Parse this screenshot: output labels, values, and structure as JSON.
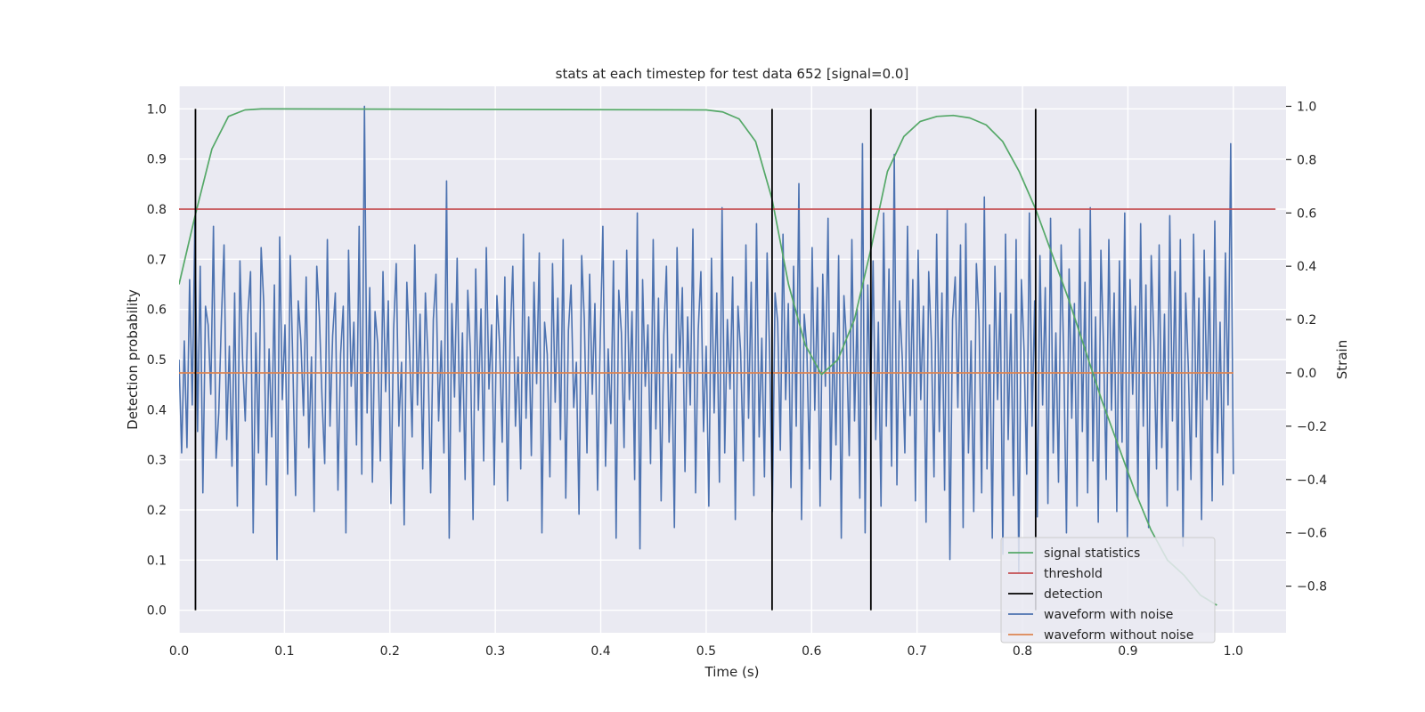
{
  "chart_data": {
    "type": "line",
    "title": "stats at each timestep for test data 652 [signal=0.0]",
    "xlabel": "Time (s)",
    "ylabel": "Detection probability",
    "ylabel_right": "Strain",
    "xlim": [
      0.0,
      1.05
    ],
    "ylim": [
      -0.045,
      1.045
    ],
    "ylim_right": [
      -0.975,
      1.075
    ],
    "grid": true,
    "legend_position": "lower-right",
    "x_ticks": [
      "0.0",
      "0.1",
      "0.2",
      "0.3",
      "0.4",
      "0.5",
      "0.6",
      "0.7",
      "0.8",
      "0.9",
      "1.0"
    ],
    "y_ticks": [
      "0.0",
      "0.1",
      "0.2",
      "0.3",
      "0.4",
      "0.5",
      "0.6",
      "0.7",
      "0.8",
      "0.9",
      "1.0"
    ],
    "y_ticks_right": [
      "−0.8",
      "−0.6",
      "−0.4",
      "−0.2",
      "0.0",
      "0.2",
      "0.4",
      "0.6",
      "0.8",
      "1.0"
    ],
    "series": [
      {
        "name": "signal statistics",
        "color": "#55a868",
        "axis": "left",
        "x": [
          0.0,
          0.0156,
          0.0312,
          0.0469,
          0.0625,
          0.0781,
          0.0938,
          0.5,
          0.5156,
          0.5312,
          0.5469,
          0.5625,
          0.5781,
          0.5938,
          0.6094,
          0.625,
          0.6406,
          0.6562,
          0.6719,
          0.6875,
          0.7031,
          0.7188,
          0.7344,
          0.75,
          0.7656,
          0.7812,
          0.7969,
          0.8125,
          0.8281,
          0.8438,
          0.8594,
          0.875,
          0.8906,
          0.9062,
          0.9219,
          0.9375,
          0.9531,
          0.9688,
          0.9844
        ],
        "y": [
          0.65,
          0.79,
          0.92,
          0.985,
          0.998,
          1.0,
          1.0,
          0.998,
          0.994,
          0.98,
          0.935,
          0.82,
          0.65,
          0.53,
          0.47,
          0.5,
          0.58,
          0.72,
          0.875,
          0.945,
          0.975,
          0.985,
          0.987,
          0.982,
          0.968,
          0.935,
          0.875,
          0.8,
          0.71,
          0.62,
          0.52,
          0.42,
          0.33,
          0.24,
          0.16,
          0.1,
          0.07,
          0.03,
          0.01
        ]
      },
      {
        "name": "threshold",
        "color": "#c44e52",
        "axis": "left",
        "x": [
          0.0,
          1.04
        ],
        "y": [
          0.8,
          0.8
        ]
      },
      {
        "name": "detection",
        "color": "#000000",
        "axis": "left",
        "segments": [
          {
            "x": 0.0156,
            "y0": 0.0,
            "y1": 1.0
          },
          {
            "x": 0.5625,
            "y0": 0.0,
            "y1": 1.0
          },
          {
            "x": 0.6562,
            "y0": 0.0,
            "y1": 1.0
          },
          {
            "x": 0.8125,
            "y0": 0.0,
            "y1": 1.0
          }
        ]
      },
      {
        "name": "waveform with noise",
        "color": "#4c72b0",
        "axis": "right",
        "x_range": [
          0.0,
          1.0
        ],
        "y": [
          0.05,
          -0.3,
          0.12,
          -0.28,
          0.35,
          -0.12,
          0.58,
          -0.22,
          0.4,
          -0.45,
          0.25,
          0.18,
          -0.08,
          0.55,
          -0.32,
          -0.15,
          0.2,
          0.48,
          -0.25,
          0.1,
          -0.35,
          0.3,
          -0.5,
          0.42,
          0.05,
          -0.18,
          0.22,
          0.38,
          -0.6,
          0.15,
          -0.3,
          0.47,
          0.26,
          -0.42,
          0.09,
          -0.24,
          0.33,
          -0.7,
          0.51,
          -0.1,
          0.18,
          -0.38,
          0.44,
          0.02,
          -0.46,
          0.27,
          0.12,
          -0.16,
          0.36,
          -0.28,
          0.06,
          -0.52,
          0.4,
          0.21,
          -0.1,
          -0.34,
          0.5,
          -0.2,
          0.14,
          0.3,
          -0.44,
          0.07,
          0.25,
          -0.6,
          0.46,
          -0.05,
          0.19,
          -0.27,
          0.55,
          -0.38,
          1.0,
          -0.15,
          0.32,
          -0.41,
          0.23,
          0.11,
          -0.33,
          0.38,
          -0.07,
          0.27,
          -0.49,
          0.16,
          0.41,
          -0.2,
          0.04,
          -0.57,
          0.34,
          0.1,
          -0.24,
          0.48,
          -0.12,
          0.22,
          -0.36,
          0.3,
          0.05,
          -0.45,
          0.2,
          0.37,
          -0.18,
          0.12,
          -0.3,
          0.72,
          -0.62,
          0.26,
          -0.09,
          0.43,
          -0.22,
          0.15,
          -0.4,
          0.31,
          0.08,
          -0.55,
          0.39,
          -0.14,
          0.24,
          -0.33,
          0.47,
          -0.06,
          0.18,
          -0.42,
          0.29,
          0.11,
          -0.26,
          0.36,
          -0.48,
          0.13,
          0.4,
          -0.2,
          0.06,
          -0.36,
          0.52,
          -0.17,
          0.21,
          -0.31,
          0.34,
          -0.04,
          0.45,
          -0.6,
          0.19,
          0.07,
          -0.39,
          0.41,
          -0.11,
          0.28,
          -0.25,
          0.5,
          -0.47,
          0.16,
          0.33,
          -0.13,
          0.04,
          -0.53,
          0.44,
          0.2,
          -0.3,
          0.37,
          -0.08,
          0.26,
          -0.44,
          0.12,
          0.55,
          -0.35,
          0.09,
          -0.19,
          0.42,
          -0.62,
          0.31,
          0.15,
          -0.28,
          0.46,
          -0.1,
          0.23,
          -0.4,
          0.6,
          -0.66,
          0.35,
          -0.05,
          0.18,
          -0.34,
          0.5,
          -0.21,
          0.28,
          -0.48,
          0.14,
          0.4,
          -0.26,
          0.07,
          -0.58,
          0.47,
          0.02,
          0.32,
          -0.37,
          0.21,
          -0.12,
          0.54,
          -0.45,
          0.16,
          0.38,
          -0.22,
          0.1,
          -0.5,
          0.43,
          -0.15,
          0.3,
          -0.41,
          0.62,
          -0.3,
          0.2,
          -0.06,
          0.36,
          -0.55,
          0.25,
          0.08,
          -0.33,
          0.48,
          -0.17,
          0.34,
          -0.46,
          0.56,
          -0.24,
          0.13,
          -0.39,
          0.45,
          0.05,
          -0.52,
          0.3,
          0.19,
          -0.29,
          0.52,
          -0.1,
          0.26,
          -0.43,
          0.4,
          -0.2,
          0.71,
          -0.55,
          0.22,
          0.09,
          -0.36,
          0.47,
          -0.14,
          0.32,
          -0.5,
          0.37,
          -0.05,
          0.58,
          -0.4,
          0.15,
          -0.27,
          0.44,
          -0.62,
          0.29,
          0.11,
          -0.31,
          0.5,
          -0.18,
          0.24,
          -0.47,
          0.86,
          -0.6,
          0.33,
          -0.12,
          0.42,
          -0.25,
          0.19,
          -0.5,
          0.6,
          -0.2,
          0.39,
          -0.35,
          0.82,
          -0.42,
          0.27,
          0.06,
          -0.3,
          0.55,
          -0.16,
          0.35,
          -0.48,
          0.46,
          -0.1,
          0.25,
          -0.56,
          0.38,
          0.12,
          -0.39,
          0.52,
          -0.22,
          0.3,
          -0.44,
          0.61,
          -0.7,
          0.2,
          0.36,
          -0.13,
          0.48,
          -0.58,
          0.56,
          -0.3,
          0.12,
          -0.52,
          0.41,
          0.2,
          -0.45,
          0.66,
          -0.36,
          0.18,
          -0.62,
          0.4,
          -0.1,
          0.3,
          -0.68,
          0.52,
          -0.25,
          0.22,
          -0.46,
          0.5,
          -0.75,
          0.35,
          0.08,
          -0.38,
          0.6,
          -0.2,
          0.27,
          -0.54,
          0.44,
          -0.12,
          0.32,
          -0.49,
          0.58,
          -0.3,
          0.15,
          -0.41,
          0.48,
          0.05,
          -0.6,
          0.39,
          -0.17,
          0.26,
          -0.5,
          0.54,
          -0.22,
          0.34,
          -0.45,
          0.62,
          -0.33,
          0.21,
          -0.56,
          0.46,
          0.1,
          -0.4,
          0.5,
          -0.14,
          0.3,
          -0.52,
          0.42,
          -0.26,
          0.6,
          -0.62,
          0.35,
          -0.08,
          0.25,
          -0.47,
          0.56,
          -0.2,
          0.33,
          -0.58,
          0.44,
          0.12,
          -0.36,
          0.48,
          -0.28,
          0.22,
          -0.5,
          0.59,
          -0.18,
          0.38,
          -0.44,
          0.5,
          -0.65,
          0.3,
          0.02,
          -0.4,
          0.52,
          -0.24,
          0.28,
          -0.55,
          0.46,
          -0.1,
          0.36,
          -0.48,
          0.57,
          -0.3,
          0.19,
          -0.42,
          0.45,
          -0.12,
          0.86,
          -0.38
        ]
      },
      {
        "name": "waveform without noise",
        "color": "#dd8452",
        "axis": "right",
        "x": [
          0.0,
          1.0
        ],
        "y": [
          0.0,
          0.0
        ]
      }
    ],
    "legend": [
      "signal statistics",
      "threshold",
      "detection",
      "waveform with noise",
      "waveform without noise"
    ]
  }
}
